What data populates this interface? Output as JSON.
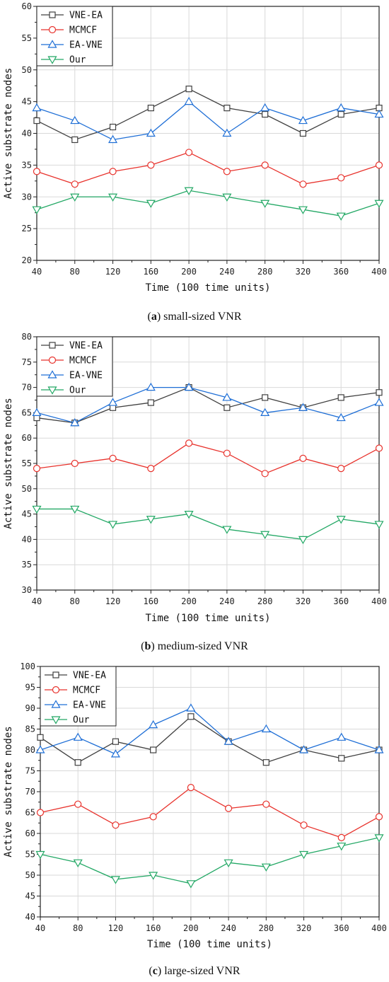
{
  "chart_data": [
    {
      "type": "line",
      "caption_letter": "a",
      "caption_text": "small-sized VNR",
      "xlabel": "Time (100 time units)",
      "ylabel": "Active substrate nodes",
      "ylim": [
        20,
        60
      ],
      "ytick_step": 5,
      "x": [
        40,
        80,
        120,
        160,
        200,
        240,
        280,
        320,
        360,
        400
      ],
      "grid": true,
      "legend_position": "top-left",
      "series": [
        {
          "name": "VNE-EA",
          "color": "#404040",
          "marker": "square",
          "values": [
            42,
            39,
            41,
            44,
            47,
            44,
            43,
            40,
            43,
            44
          ]
        },
        {
          "name": "MCMCF",
          "color": "#e8322c",
          "marker": "circle",
          "values": [
            34,
            32,
            34,
            35,
            37,
            34,
            35,
            32,
            33,
            35
          ]
        },
        {
          "name": "EA-VNE",
          "color": "#1f6fd6",
          "marker": "triangle-up",
          "values": [
            44,
            42,
            39,
            40,
            45,
            40,
            44,
            42,
            44,
            43
          ]
        },
        {
          "name": "Our",
          "color": "#23a865",
          "marker": "triangle-down",
          "values": [
            28,
            30,
            30,
            29,
            31,
            30,
            29,
            28,
            27,
            29
          ]
        }
      ]
    },
    {
      "type": "line",
      "caption_letter": "b",
      "caption_text": "medium-sized VNR",
      "xlabel": "Time (100 time units)",
      "ylabel": "Active substrate nodes",
      "ylim": [
        30,
        80
      ],
      "ytick_step": 5,
      "x": [
        40,
        80,
        120,
        160,
        200,
        240,
        280,
        320,
        360,
        400
      ],
      "grid": true,
      "legend_position": "top-left",
      "series": [
        {
          "name": "VNE-EA",
          "color": "#404040",
          "marker": "square",
          "values": [
            64,
            63,
            66,
            67,
            70,
            66,
            68,
            66,
            68,
            69
          ]
        },
        {
          "name": "MCMCF",
          "color": "#e8322c",
          "marker": "circle",
          "values": [
            54,
            55,
            56,
            54,
            59,
            57,
            53,
            56,
            54,
            58
          ]
        },
        {
          "name": "EA-VNE",
          "color": "#1f6fd6",
          "marker": "triangle-up",
          "values": [
            65,
            63,
            67,
            70,
            70,
            68,
            65,
            66,
            64,
            67
          ]
        },
        {
          "name": "Our",
          "color": "#23a865",
          "marker": "triangle-down",
          "values": [
            46,
            46,
            43,
            44,
            45,
            42,
            41,
            40,
            44,
            43
          ]
        }
      ]
    },
    {
      "type": "line",
      "caption_letter": "c",
      "caption_text": "large-sized VNR",
      "xlabel": "Time (100 time units)",
      "ylabel": "Active substrate nodes",
      "ylim": [
        40,
        100
      ],
      "ytick_step": 5,
      "x": [
        40,
        80,
        120,
        160,
        200,
        240,
        280,
        320,
        360,
        400
      ],
      "grid": true,
      "legend_position": "top-left",
      "series": [
        {
          "name": "VNE-EA",
          "color": "#404040",
          "marker": "square",
          "values": [
            83,
            77,
            82,
            80,
            88,
            82,
            77,
            80,
            78,
            80
          ]
        },
        {
          "name": "MCMCF",
          "color": "#e8322c",
          "marker": "circle",
          "values": [
            65,
            67,
            62,
            64,
            71,
            66,
            67,
            62,
            59,
            64
          ]
        },
        {
          "name": "EA-VNE",
          "color": "#1f6fd6",
          "marker": "triangle-up",
          "values": [
            80,
            83,
            79,
            86,
            90,
            82,
            85,
            80,
            83,
            80
          ]
        },
        {
          "name": "Our",
          "color": "#23a865",
          "marker": "triangle-down",
          "values": [
            55,
            53,
            49,
            50,
            48,
            53,
            52,
            55,
            57,
            59
          ]
        }
      ]
    }
  ]
}
